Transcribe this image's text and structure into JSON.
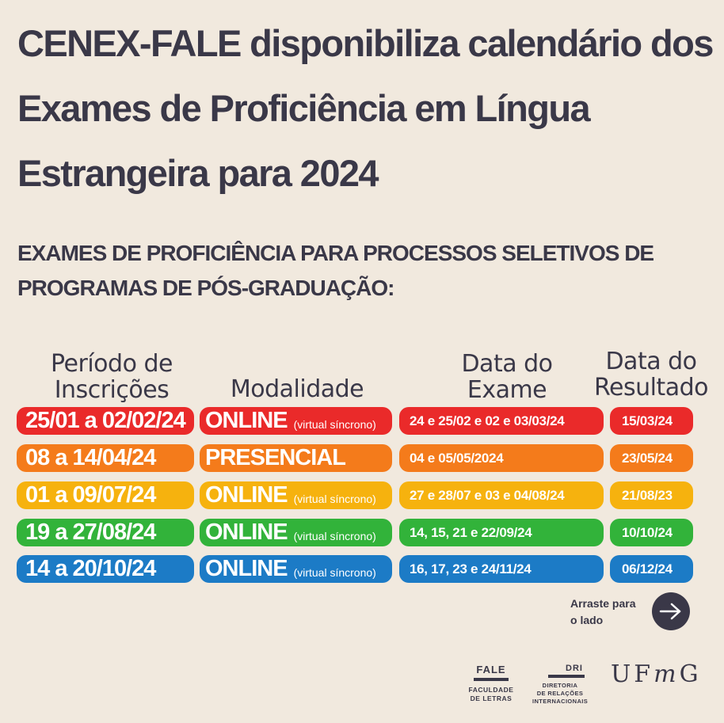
{
  "title": "CENEX-FALE disponibiliza calendário dos Exames de Proficiência em Língua Estrangeira para 2024",
  "subtitle": "EXAMES DE PROFICIÊNCIA PARA PROCESSOS SELETIVOS DE PROGRAMAS DE PÓS-GRADUAÇÃO:",
  "columns": {
    "periodo_line1": "Período de",
    "periodo_line2": "Inscrições",
    "modalidade": "Modalidade",
    "data_exame_line1": "Data do",
    "data_exame_line2": "Exame",
    "data_resultado_line1": "Data do",
    "data_resultado_line2": "Resultado"
  },
  "rows": [
    {
      "periodo": "25/01 a 02/02/24",
      "modalidade": "ONLINE",
      "nota": "(virtual síncrono)",
      "data_exame": "24 e 25/02 e 02 e 03/03/24",
      "resultado": "15/03/24",
      "color": "#ea2a2a"
    },
    {
      "periodo": "08 a 14/04/24",
      "modalidade": "PRESENCIAL",
      "nota": "",
      "data_exame": "04 e 05/05/2024",
      "resultado": "23/05/24",
      "color": "#f47b1b"
    },
    {
      "periodo": "01 a 09/07/24",
      "modalidade": "ONLINE",
      "nota": "(virtual síncrono)",
      "data_exame": "27 e 28/07 e 03 e 04/08/24",
      "resultado": "21/08/23",
      "color": "#f6b20e"
    },
    {
      "periodo": "19 a 27/08/24",
      "modalidade": "ONLINE",
      "nota": "(virtual síncrono)",
      "data_exame": "14, 15, 21 e 22/09/24",
      "resultado": "10/10/24",
      "color": "#32b33a"
    },
    {
      "periodo": "14 a 20/10/24",
      "modalidade": "ONLINE",
      "nota": "(virtual síncrono)",
      "data_exame": "16, 17, 23 e 24/11/24",
      "resultado": "06/12/24",
      "color": "#1c7bc6"
    }
  ],
  "swipe": {
    "line1": "Arraste para",
    "line2": "o lado",
    "icon": "arrow-right-icon"
  },
  "logos": {
    "fale": {
      "word": "FALE",
      "line1": "FACULDADE",
      "line2": "DE LETRAS"
    },
    "dri": {
      "word": "DRI",
      "line1": "DIRETORIA",
      "line2": "DE RELAÇÕES",
      "line3": "INTERNACIONAIS"
    },
    "ufmg": {
      "u": "U",
      "f": "F",
      "m": "m",
      "g": "G"
    }
  },
  "colors": {
    "background": "#f1e9de",
    "text": "#3a3848"
  }
}
